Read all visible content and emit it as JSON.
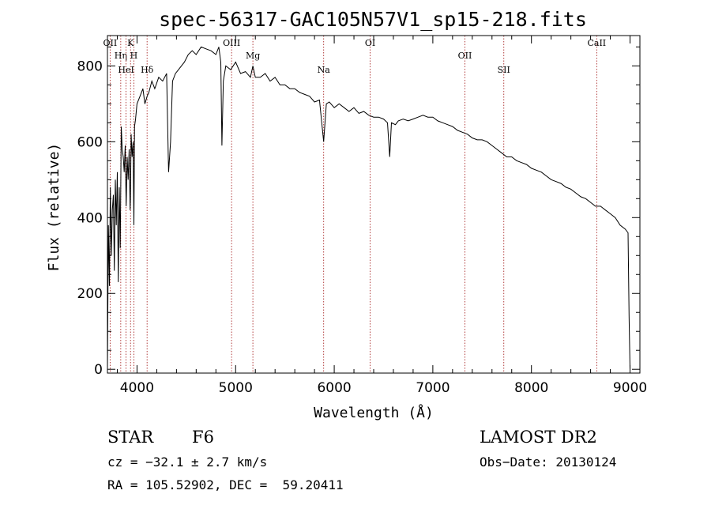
{
  "chart_data": {
    "type": "line",
    "title": "spec-56317-GAC105N57V1_sp15-218.fits",
    "xlabel": "Wavelength (Å)",
    "ylabel": "Flux (relative)",
    "xlim": [
      3700,
      9100
    ],
    "ylim": [
      -10,
      880
    ],
    "xticks": [
      4000,
      5000,
      6000,
      7000,
      8000,
      9000
    ],
    "yticks": [
      0,
      200,
      400,
      600,
      800
    ],
    "series": [
      {
        "name": "flux",
        "x": [
          3700,
          3710,
          3720,
          3730,
          3740,
          3750,
          3760,
          3770,
          3780,
          3790,
          3800,
          3810,
          3820,
          3830,
          3840,
          3850,
          3860,
          3870,
          3880,
          3890,
          3900,
          3910,
          3920,
          3930,
          3933,
          3940,
          3950,
          3960,
          3968,
          3975,
          3985,
          4000,
          4030,
          4060,
          4080,
          4102,
          4120,
          4150,
          4180,
          4220,
          4260,
          4300,
          4320,
          4340,
          4360,
          4390,
          4420,
          4450,
          4480,
          4520,
          4560,
          4600,
          4650,
          4700,
          4750,
          4800,
          4830,
          4850,
          4861,
          4875,
          4900,
          4950,
          5000,
          5050,
          5100,
          5150,
          5175,
          5200,
          5250,
          5300,
          5350,
          5400,
          5450,
          5500,
          5550,
          5600,
          5650,
          5700,
          5750,
          5800,
          5850,
          5893,
          5920,
          5950,
          6000,
          6050,
          6100,
          6150,
          6200,
          6250,
          6300,
          6350,
          6400,
          6450,
          6500,
          6540,
          6563,
          6580,
          6620,
          6650,
          6700,
          6750,
          6800,
          6850,
          6900,
          6950,
          7000,
          7050,
          7100,
          7150,
          7200,
          7250,
          7300,
          7350,
          7400,
          7450,
          7500,
          7550,
          7600,
          7650,
          7700,
          7750,
          7800,
          7850,
          7900,
          7950,
          8000,
          8050,
          8100,
          8150,
          8200,
          8250,
          8300,
          8350,
          8400,
          8450,
          8500,
          8550,
          8600,
          8650,
          8700,
          8750,
          8800,
          8850,
          8900,
          8950,
          8980,
          8990,
          9000
        ],
        "y": [
          0,
          380,
          220,
          480,
          300,
          420,
          460,
          260,
          500,
          380,
          520,
          230,
          480,
          320,
          640,
          580,
          560,
          520,
          590,
          430,
          560,
          500,
          580,
          420,
          450,
          620,
          560,
          600,
          380,
          640,
          660,
          700,
          720,
          740,
          700,
          720,
          730,
          760,
          740,
          770,
          760,
          780,
          520,
          600,
          760,
          780,
          790,
          800,
          810,
          830,
          840,
          830,
          850,
          845,
          840,
          830,
          850,
          810,
          590,
          760,
          800,
          790,
          810,
          780,
          785,
          770,
          800,
          770,
          770,
          780,
          760,
          770,
          750,
          750,
          740,
          740,
          730,
          725,
          720,
          705,
          710,
          600,
          700,
          705,
          690,
          700,
          690,
          680,
          690,
          675,
          680,
          670,
          665,
          665,
          660,
          650,
          560,
          650,
          645,
          655,
          660,
          655,
          660,
          665,
          670,
          665,
          665,
          655,
          650,
          645,
          640,
          630,
          625,
          620,
          610,
          605,
          605,
          600,
          590,
          580,
          570,
          560,
          560,
          550,
          545,
          540,
          530,
          525,
          520,
          510,
          500,
          495,
          490,
          480,
          475,
          465,
          455,
          450,
          440,
          430,
          430,
          420,
          410,
          400,
          380,
          370,
          360,
          140,
          0
        ]
      }
    ],
    "reference_lines": [
      {
        "label": "OII",
        "x": 3727
      },
      {
        "label": "Hη",
        "x": 3835
      },
      {
        "label": "HeI",
        "x": 3889
      },
      {
        "label": "K",
        "x": 3934
      },
      {
        "label": "H",
        "x": 3968
      },
      {
        "label": "Hδ",
        "x": 4102
      },
      {
        "label": "OIII",
        "x": 4959
      },
      {
        "label": "Mg",
        "x": 5175
      },
      {
        "label": "Na",
        "x": 5893
      },
      {
        "label": "OI",
        "x": 6364
      },
      {
        "label": "OII",
        "x": 7325
      },
      {
        "label": "SII",
        "x": 7720
      },
      {
        "label": "CaII",
        "x": 8662
      }
    ]
  },
  "info": {
    "object_class": "STAR",
    "subclass": "F6",
    "survey": "LAMOST DR2",
    "redshift": "cz = −32.1 ± 2.7 km/s",
    "obs_date": "Obs−Date: 20130124",
    "coords": "RA = 105.52902, DEC =  59.20411"
  }
}
